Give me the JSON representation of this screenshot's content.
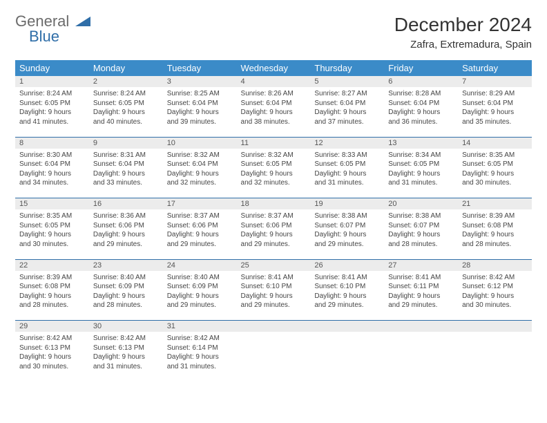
{
  "logo": {
    "part1": "General",
    "part2": "Blue"
  },
  "title": "December 2024",
  "subtitle": "Zafra, Extremadura, Spain",
  "colors": {
    "header_bg": "#3b8bc8",
    "row_divider": "#2f6ea8",
    "daynum_bg": "#ececec",
    "text": "#333333",
    "logo_gray": "#6b6b6b",
    "logo_blue": "#2f6ea8"
  },
  "weekdays": [
    "Sunday",
    "Monday",
    "Tuesday",
    "Wednesday",
    "Thursday",
    "Friday",
    "Saturday"
  ],
  "weeks": [
    {
      "nums": [
        "1",
        "2",
        "3",
        "4",
        "5",
        "6",
        "7"
      ],
      "cells": [
        {
          "sunrise": "Sunrise: 8:24 AM",
          "sunset": "Sunset: 6:05 PM",
          "day1": "Daylight: 9 hours",
          "day2": "and 41 minutes."
        },
        {
          "sunrise": "Sunrise: 8:24 AM",
          "sunset": "Sunset: 6:05 PM",
          "day1": "Daylight: 9 hours",
          "day2": "and 40 minutes."
        },
        {
          "sunrise": "Sunrise: 8:25 AM",
          "sunset": "Sunset: 6:04 PM",
          "day1": "Daylight: 9 hours",
          "day2": "and 39 minutes."
        },
        {
          "sunrise": "Sunrise: 8:26 AM",
          "sunset": "Sunset: 6:04 PM",
          "day1": "Daylight: 9 hours",
          "day2": "and 38 minutes."
        },
        {
          "sunrise": "Sunrise: 8:27 AM",
          "sunset": "Sunset: 6:04 PM",
          "day1": "Daylight: 9 hours",
          "day2": "and 37 minutes."
        },
        {
          "sunrise": "Sunrise: 8:28 AM",
          "sunset": "Sunset: 6:04 PM",
          "day1": "Daylight: 9 hours",
          "day2": "and 36 minutes."
        },
        {
          "sunrise": "Sunrise: 8:29 AM",
          "sunset": "Sunset: 6:04 PM",
          "day1": "Daylight: 9 hours",
          "day2": "and 35 minutes."
        }
      ]
    },
    {
      "nums": [
        "8",
        "9",
        "10",
        "11",
        "12",
        "13",
        "14"
      ],
      "cells": [
        {
          "sunrise": "Sunrise: 8:30 AM",
          "sunset": "Sunset: 6:04 PM",
          "day1": "Daylight: 9 hours",
          "day2": "and 34 minutes."
        },
        {
          "sunrise": "Sunrise: 8:31 AM",
          "sunset": "Sunset: 6:04 PM",
          "day1": "Daylight: 9 hours",
          "day2": "and 33 minutes."
        },
        {
          "sunrise": "Sunrise: 8:32 AM",
          "sunset": "Sunset: 6:04 PM",
          "day1": "Daylight: 9 hours",
          "day2": "and 32 minutes."
        },
        {
          "sunrise": "Sunrise: 8:32 AM",
          "sunset": "Sunset: 6:05 PM",
          "day1": "Daylight: 9 hours",
          "day2": "and 32 minutes."
        },
        {
          "sunrise": "Sunrise: 8:33 AM",
          "sunset": "Sunset: 6:05 PM",
          "day1": "Daylight: 9 hours",
          "day2": "and 31 minutes."
        },
        {
          "sunrise": "Sunrise: 8:34 AM",
          "sunset": "Sunset: 6:05 PM",
          "day1": "Daylight: 9 hours",
          "day2": "and 31 minutes."
        },
        {
          "sunrise": "Sunrise: 8:35 AM",
          "sunset": "Sunset: 6:05 PM",
          "day1": "Daylight: 9 hours",
          "day2": "and 30 minutes."
        }
      ]
    },
    {
      "nums": [
        "15",
        "16",
        "17",
        "18",
        "19",
        "20",
        "21"
      ],
      "cells": [
        {
          "sunrise": "Sunrise: 8:35 AM",
          "sunset": "Sunset: 6:05 PM",
          "day1": "Daylight: 9 hours",
          "day2": "and 30 minutes."
        },
        {
          "sunrise": "Sunrise: 8:36 AM",
          "sunset": "Sunset: 6:06 PM",
          "day1": "Daylight: 9 hours",
          "day2": "and 29 minutes."
        },
        {
          "sunrise": "Sunrise: 8:37 AM",
          "sunset": "Sunset: 6:06 PM",
          "day1": "Daylight: 9 hours",
          "day2": "and 29 minutes."
        },
        {
          "sunrise": "Sunrise: 8:37 AM",
          "sunset": "Sunset: 6:06 PM",
          "day1": "Daylight: 9 hours",
          "day2": "and 29 minutes."
        },
        {
          "sunrise": "Sunrise: 8:38 AM",
          "sunset": "Sunset: 6:07 PM",
          "day1": "Daylight: 9 hours",
          "day2": "and 29 minutes."
        },
        {
          "sunrise": "Sunrise: 8:38 AM",
          "sunset": "Sunset: 6:07 PM",
          "day1": "Daylight: 9 hours",
          "day2": "and 28 minutes."
        },
        {
          "sunrise": "Sunrise: 8:39 AM",
          "sunset": "Sunset: 6:08 PM",
          "day1": "Daylight: 9 hours",
          "day2": "and 28 minutes."
        }
      ]
    },
    {
      "nums": [
        "22",
        "23",
        "24",
        "25",
        "26",
        "27",
        "28"
      ],
      "cells": [
        {
          "sunrise": "Sunrise: 8:39 AM",
          "sunset": "Sunset: 6:08 PM",
          "day1": "Daylight: 9 hours",
          "day2": "and 28 minutes."
        },
        {
          "sunrise": "Sunrise: 8:40 AM",
          "sunset": "Sunset: 6:09 PM",
          "day1": "Daylight: 9 hours",
          "day2": "and 28 minutes."
        },
        {
          "sunrise": "Sunrise: 8:40 AM",
          "sunset": "Sunset: 6:09 PM",
          "day1": "Daylight: 9 hours",
          "day2": "and 29 minutes."
        },
        {
          "sunrise": "Sunrise: 8:41 AM",
          "sunset": "Sunset: 6:10 PM",
          "day1": "Daylight: 9 hours",
          "day2": "and 29 minutes."
        },
        {
          "sunrise": "Sunrise: 8:41 AM",
          "sunset": "Sunset: 6:10 PM",
          "day1": "Daylight: 9 hours",
          "day2": "and 29 minutes."
        },
        {
          "sunrise": "Sunrise: 8:41 AM",
          "sunset": "Sunset: 6:11 PM",
          "day1": "Daylight: 9 hours",
          "day2": "and 29 minutes."
        },
        {
          "sunrise": "Sunrise: 8:42 AM",
          "sunset": "Sunset: 6:12 PM",
          "day1": "Daylight: 9 hours",
          "day2": "and 30 minutes."
        }
      ]
    },
    {
      "nums": [
        "29",
        "30",
        "31",
        "",
        "",
        "",
        ""
      ],
      "cells": [
        {
          "sunrise": "Sunrise: 8:42 AM",
          "sunset": "Sunset: 6:13 PM",
          "day1": "Daylight: 9 hours",
          "day2": "and 30 minutes."
        },
        {
          "sunrise": "Sunrise: 8:42 AM",
          "sunset": "Sunset: 6:13 PM",
          "day1": "Daylight: 9 hours",
          "day2": "and 31 minutes."
        },
        {
          "sunrise": "Sunrise: 8:42 AM",
          "sunset": "Sunset: 6:14 PM",
          "day1": "Daylight: 9 hours",
          "day2": "and 31 minutes."
        },
        null,
        null,
        null,
        null
      ]
    }
  ]
}
